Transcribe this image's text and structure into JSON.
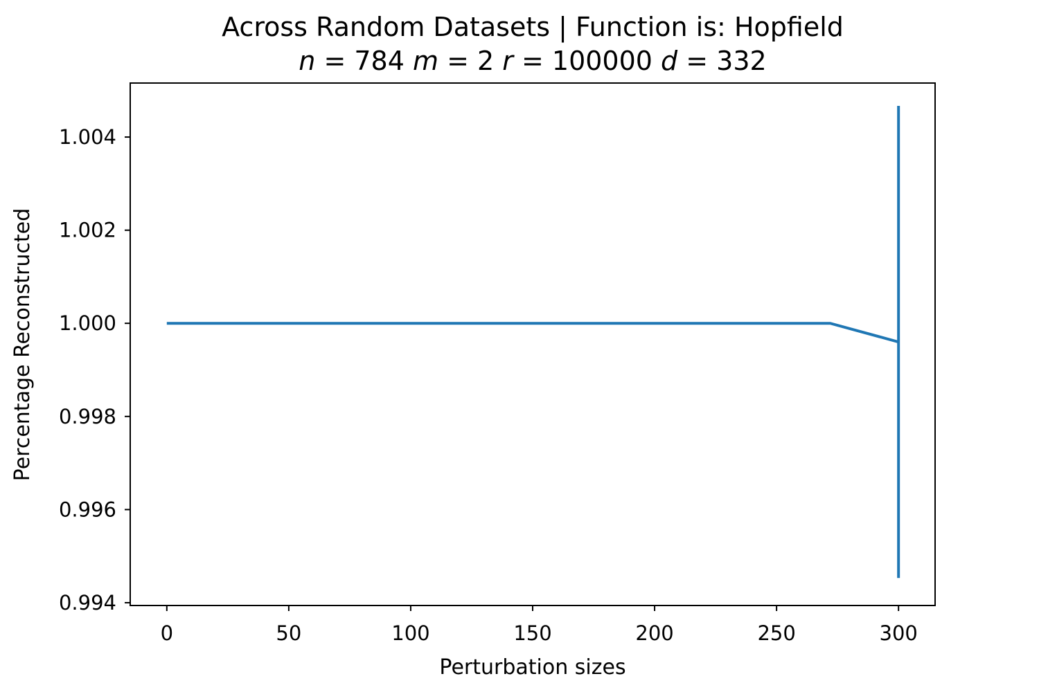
{
  "chart_data": {
    "type": "line",
    "title": "Across Random Datasets | Function is: Hopfield",
    "subtitle": "n = 784  m = 2  r = 100000  d = 332",
    "subtitle_parts": [
      {
        "sym": "n",
        "eq": " = 784 "
      },
      {
        "sym": "m",
        "eq": " = 2 "
      },
      {
        "sym": "r",
        "eq": " = 100000 "
      },
      {
        "sym": "d",
        "eq": " = 332"
      }
    ],
    "xlabel": "Perturbation sizes",
    "ylabel": "Percentage Reconstructed",
    "xlim": [
      -15,
      315
    ],
    "ylim": [
      0.99394,
      1.00516
    ],
    "xticks": [
      0,
      50,
      100,
      150,
      200,
      250,
      300
    ],
    "xtick_labels": [
      "0",
      "50",
      "100",
      "150",
      "200",
      "250",
      "300"
    ],
    "yticks": [
      0.994,
      0.996,
      0.998,
      1.0,
      1.002,
      1.004
    ],
    "ytick_labels": [
      "0.994",
      "0.996",
      "0.998",
      "1.000",
      "1.002",
      "1.004"
    ],
    "grid": false,
    "series": [
      {
        "color": "#1f77b4",
        "x": [
          0,
          272,
          300
        ],
        "y": [
          1.0,
          1.0,
          0.9996
        ],
        "error": [
          0,
          0,
          0.00507
        ]
      }
    ]
  }
}
